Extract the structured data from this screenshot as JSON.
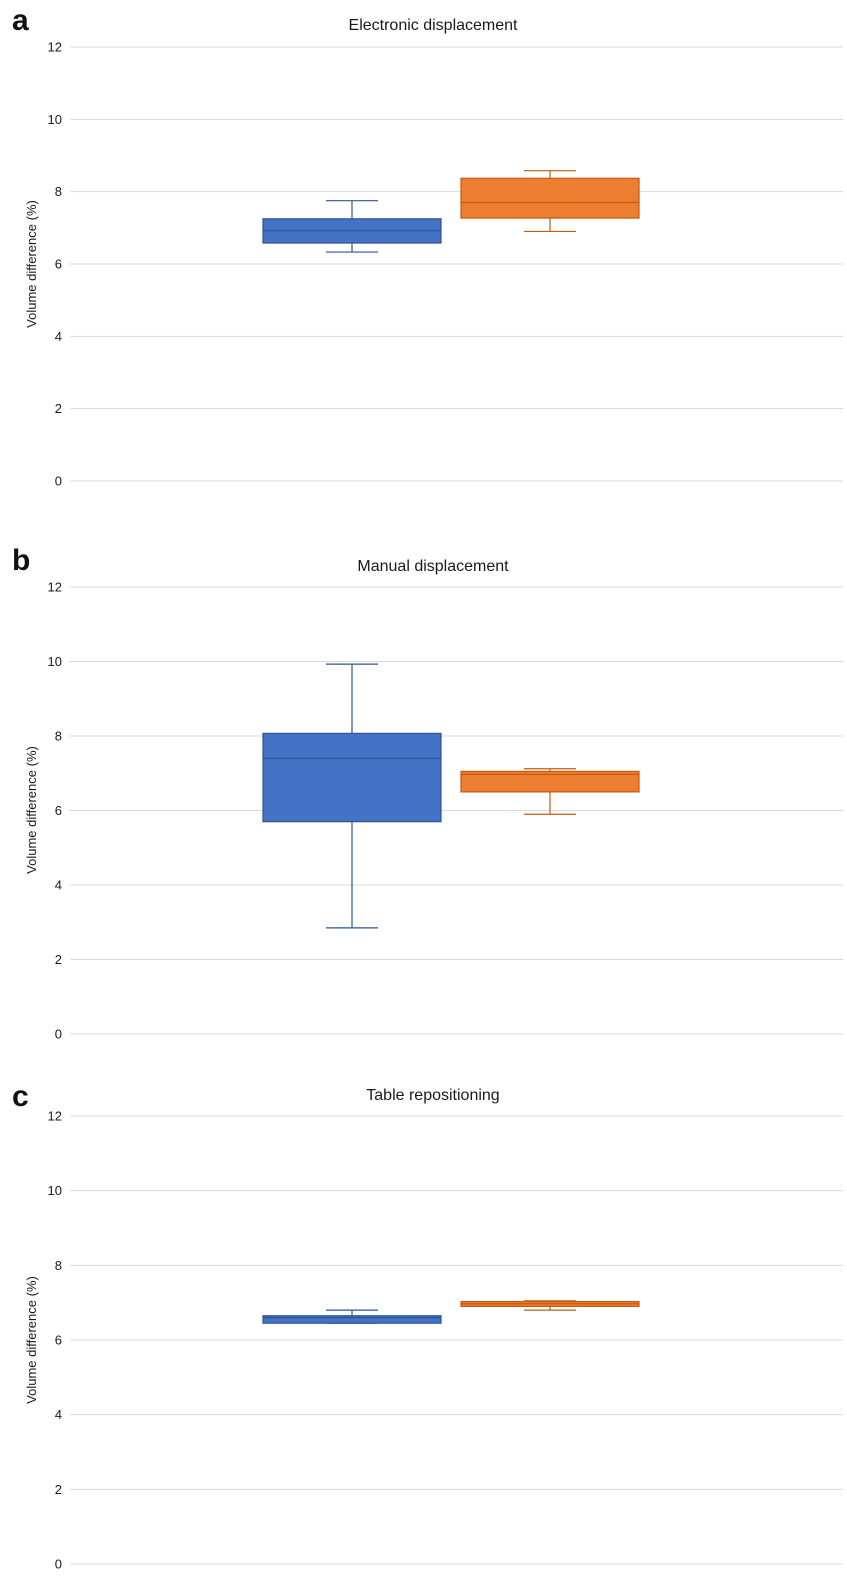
{
  "colors": {
    "series1": "#4472c4",
    "series1_edge": "#2f5597",
    "series2": "#ed7d31",
    "series2_edge": "#c55a11",
    "grid": "#d9d9d9"
  },
  "chart_data": [
    {
      "type": "box",
      "panel": "a",
      "title": "Electronic displacement",
      "xlabel": "",
      "ylabel": "Volume difference (%)",
      "ylim": [
        0,
        12
      ],
      "yticks": [
        "0",
        "2",
        "4",
        "6",
        "8",
        "10",
        "12"
      ],
      "grid": true,
      "series": [
        {
          "min": 6.33,
          "q1": 6.58,
          "median": 6.92,
          "q3": 7.25,
          "max": 7.75
        },
        {
          "min": 6.9,
          "q1": 7.27,
          "median": 7.7,
          "q3": 8.37,
          "max": 8.58
        }
      ]
    },
    {
      "type": "box",
      "panel": "b",
      "title": "Manual displacement",
      "xlabel": "",
      "ylabel": "Volume difference (%)",
      "ylim": [
        0,
        12
      ],
      "yticks": [
        "0",
        "2",
        "4",
        "6",
        "8",
        "10",
        "12"
      ],
      "grid": true,
      "series": [
        {
          "min": 2.85,
          "q1": 5.7,
          "median": 7.4,
          "q3": 8.07,
          "max": 9.93
        },
        {
          "min": 5.9,
          "q1": 6.5,
          "median": 6.97,
          "q3": 7.05,
          "max": 7.12
        }
      ]
    },
    {
      "type": "box",
      "panel": "c",
      "title": "Table repositioning",
      "xlabel": "",
      "ylabel": "Volume difference (%)",
      "ylim": [
        0,
        12
      ],
      "yticks": [
        "0",
        "2",
        "4",
        "6",
        "8",
        "10",
        "12"
      ],
      "grid": true,
      "series": [
        {
          "min": 6.45,
          "q1": 6.45,
          "median": 6.6,
          "q3": 6.65,
          "max": 6.8
        },
        {
          "min": 6.8,
          "q1": 6.9,
          "median": 6.97,
          "q3": 7.03,
          "max": 7.05
        }
      ]
    }
  ]
}
